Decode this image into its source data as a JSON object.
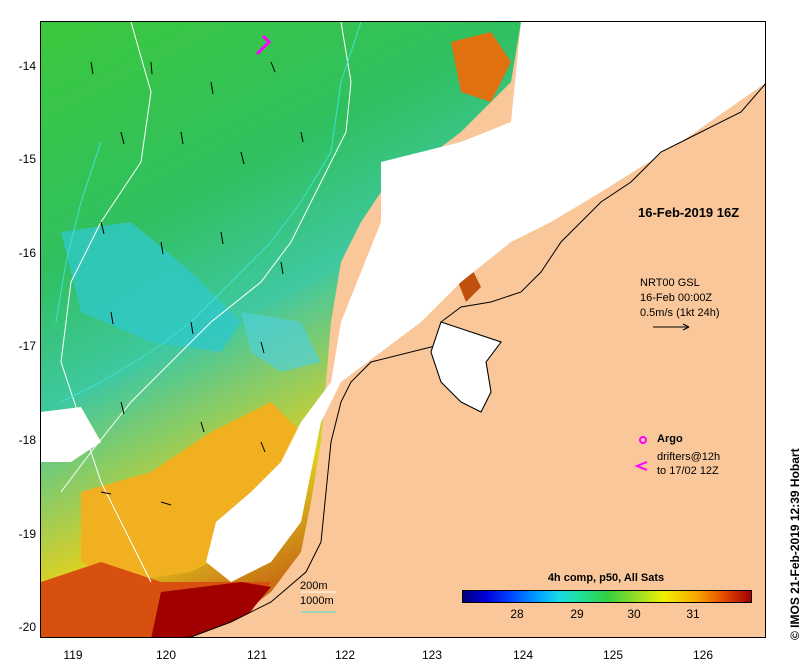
{
  "map": {
    "y_axis_ticks": [
      "-14",
      "-15",
      "-16",
      "-17",
      "-18",
      "-19",
      "-20"
    ],
    "x_axis_ticks": [
      "119",
      "120",
      "121",
      "122",
      "123",
      "124",
      "125",
      "126"
    ],
    "land_color": "#f9c79a",
    "cloud_color": "#ffffff"
  },
  "annotations": {
    "timestamp": "16-Feb-2019 16Z",
    "current_source": "NRT00 GSL",
    "current_time": "16-Feb 00:00Z",
    "current_scale": "0.5m/s (1kt 24h)",
    "argo_label": "Argo",
    "drifters_label": "drifters@12h",
    "drifters_to": "to 17/02 12Z"
  },
  "bathymetry": {
    "contour_200": "200m",
    "contour_1000": "1000m",
    "contour_200_color": "#ffffff",
    "contour_1000_color": "#40e0d0"
  },
  "colorbar": {
    "title": "4h comp, p50, All Sats",
    "ticks": [
      "28",
      "29",
      "30",
      "31"
    ]
  },
  "credit": "© IMOS 21-Feb-2019 12:39 Hobart"
}
